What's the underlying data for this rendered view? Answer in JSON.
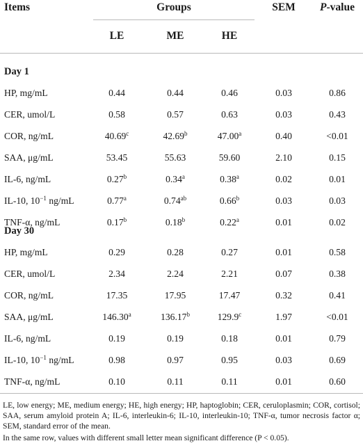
{
  "header": {
    "items": "Items",
    "groups": "Groups",
    "sem": "SEM",
    "p_prefix": "P",
    "p_suffix": "-value",
    "groups_cols": [
      "LE",
      "ME",
      "HE"
    ]
  },
  "sections": [
    {
      "title": "Day 1",
      "rows": [
        {
          "label": "HP, mg/mL",
          "cells": [
            [
              "0.44",
              ""
            ],
            [
              "0.44",
              ""
            ],
            [
              "0.46",
              ""
            ]
          ],
          "sem": "0.03",
          "p": "0.86"
        },
        {
          "label": "CER, umol/L",
          "cells": [
            [
              "0.58",
              ""
            ],
            [
              "0.57",
              ""
            ],
            [
              "0.63",
              ""
            ]
          ],
          "sem": "0.03",
          "p": "0.43"
        },
        {
          "label": "COR, ng/mL",
          "cells": [
            [
              "40.69",
              "c"
            ],
            [
              "42.69",
              "b"
            ],
            [
              "47.00",
              "a"
            ]
          ],
          "sem": "0.40",
          "p": "<0.01"
        },
        {
          "label": "SAA, μg/mL",
          "cells": [
            [
              "53.45",
              ""
            ],
            [
              "55.63",
              ""
            ],
            [
              "59.60",
              ""
            ]
          ],
          "sem": "2.10",
          "p": "0.15"
        },
        {
          "label": "IL-6, ng/mL",
          "cells": [
            [
              "0.27",
              "b"
            ],
            [
              "0.34",
              "a"
            ],
            [
              "0.38",
              "a"
            ]
          ],
          "sem": "0.02",
          "p": "0.01"
        },
        {
          "label_pre": "IL-10, 10",
          "label_sup": "−1",
          "label_post": " ng/mL",
          "cells": [
            [
              "0.77",
              "a"
            ],
            [
              "0.74",
              "ab"
            ],
            [
              "0.66",
              "b"
            ]
          ],
          "sem": "0.03",
          "p": "0.03"
        },
        {
          "label": "TNF-α, ng/mL",
          "cells": [
            [
              "0.17",
              "b"
            ],
            [
              "0.18",
              "b"
            ],
            [
              "0.22",
              "a"
            ]
          ],
          "sem": "0.01",
          "p": "0.02"
        }
      ]
    },
    {
      "title": "Day 30",
      "rows": [
        {
          "label": "HP, mg/mL",
          "cells": [
            [
              "0.29",
              ""
            ],
            [
              "0.28",
              ""
            ],
            [
              "0.27",
              ""
            ]
          ],
          "sem": "0.01",
          "p": "0.58"
        },
        {
          "label": "CER, umol/L",
          "cells": [
            [
              "2.34",
              ""
            ],
            [
              "2.24",
              ""
            ],
            [
              "2.21",
              ""
            ]
          ],
          "sem": "0.07",
          "p": "0.38"
        },
        {
          "label": "COR, ng/mL",
          "cells": [
            [
              "17.35",
              ""
            ],
            [
              "17.95",
              ""
            ],
            [
              "17.47",
              ""
            ]
          ],
          "sem": "0.32",
          "p": "0.41"
        },
        {
          "label": "SAA, μg/mL",
          "cells": [
            [
              "146.30",
              "a"
            ],
            [
              "136.17",
              "b"
            ],
            [
              "129.9",
              "c"
            ]
          ],
          "sem": "1.97",
          "p": "<0.01"
        },
        {
          "label": "IL-6, ng/mL",
          "cells": [
            [
              "0.19",
              ""
            ],
            [
              "0.19",
              ""
            ],
            [
              "0.18",
              ""
            ]
          ],
          "sem": "0.01",
          "p": "0.79"
        },
        {
          "label_pre": "IL-10, 10",
          "label_sup": "−1",
          "label_post": " ng/mL",
          "cells": [
            [
              "0.98",
              ""
            ],
            [
              "0.97",
              ""
            ],
            [
              "0.95",
              ""
            ]
          ],
          "sem": "0.03",
          "p": "0.69"
        },
        {
          "label": "TNF-α, ng/mL",
          "cells": [
            [
              "0.10",
              ""
            ],
            [
              "0.11",
              ""
            ],
            [
              "0.11",
              ""
            ]
          ],
          "sem": "0.01",
          "p": "0.60"
        }
      ]
    }
  ],
  "footnotes": [
    "LE, low energy; ME, medium energy; HE, high energy; HP, haptoglobin; CER, ceruloplasmin; COR, cortisol; SAA, serum amyloid protein A; IL-6, interleukin-6; IL-10, interleukin-10; TNF-α, tumor necrosis factor α; SEM, standard error of the mean.",
    "In the same row, values with different small letter mean significant difference (P < 0.05)."
  ]
}
